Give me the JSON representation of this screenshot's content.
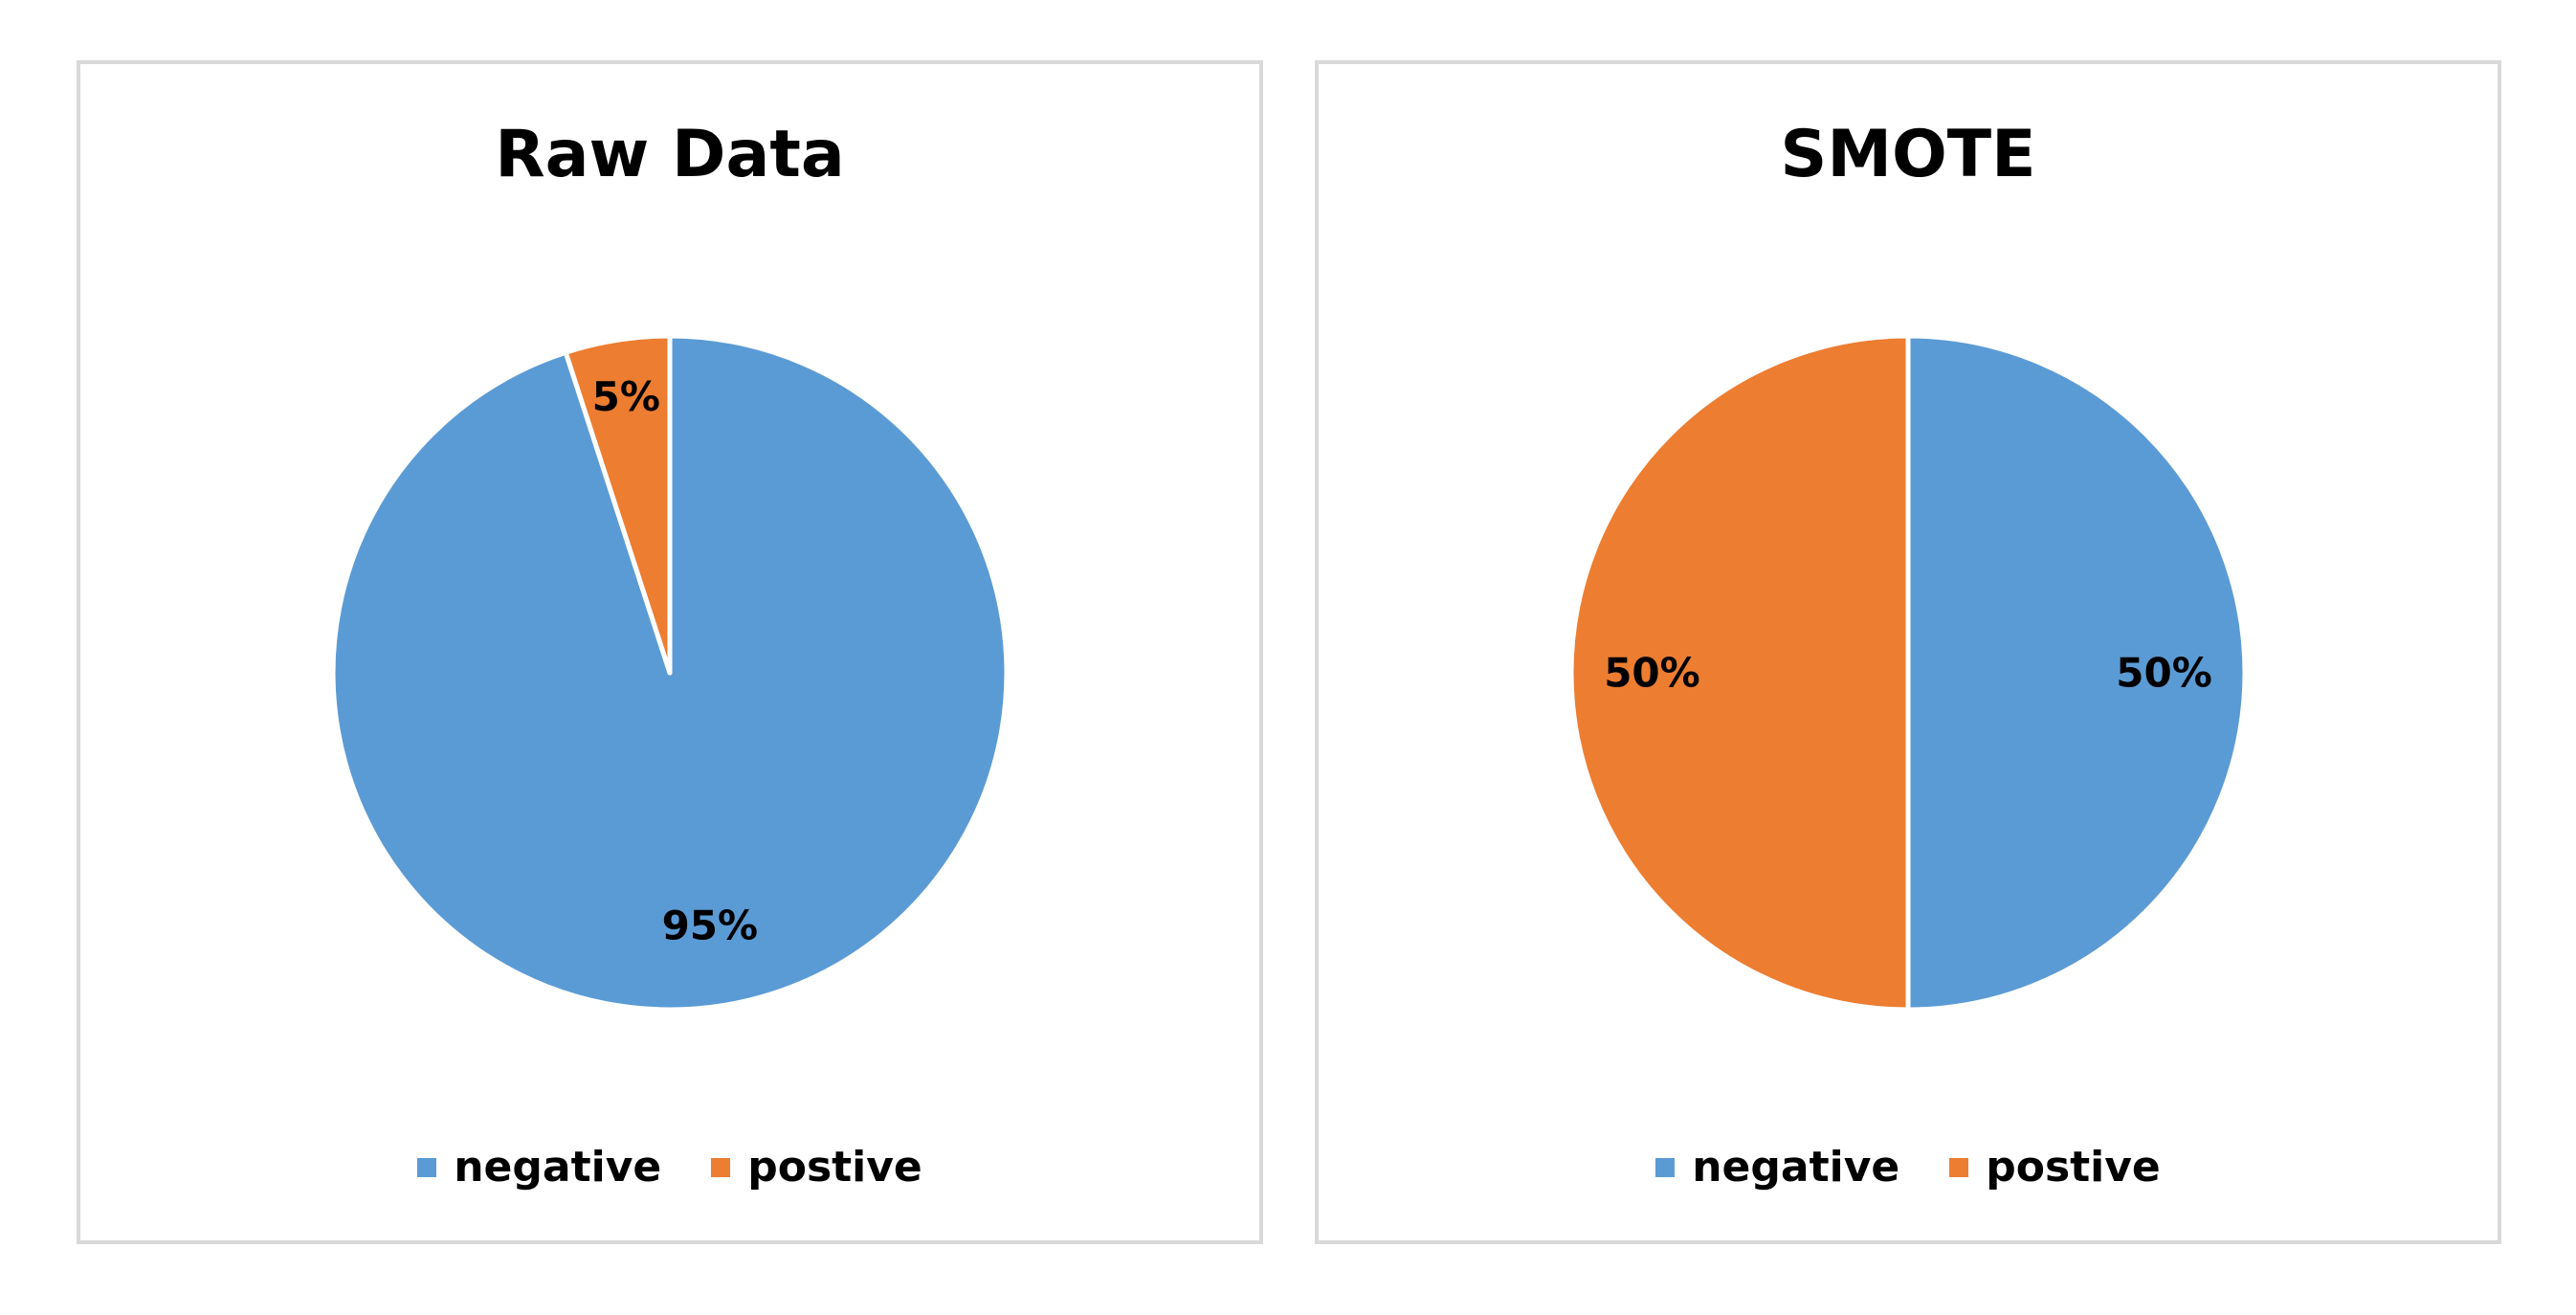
{
  "chart_data": [
    {
      "type": "pie",
      "title": "Raw Data",
      "categories": [
        "negative",
        "postive"
      ],
      "values": [
        95,
        5
      ],
      "labels": [
        "95%",
        "5%"
      ],
      "colors": [
        "#5B9BD5",
        "#ED7D31"
      ],
      "legend_position": "bottom"
    },
    {
      "type": "pie",
      "title": "SMOTE",
      "categories": [
        "negative",
        "postive"
      ],
      "values": [
        50,
        50
      ],
      "labels": [
        "50%",
        "50%"
      ],
      "colors": [
        "#5B9BD5",
        "#ED7D31"
      ],
      "legend_position": "bottom"
    }
  ]
}
